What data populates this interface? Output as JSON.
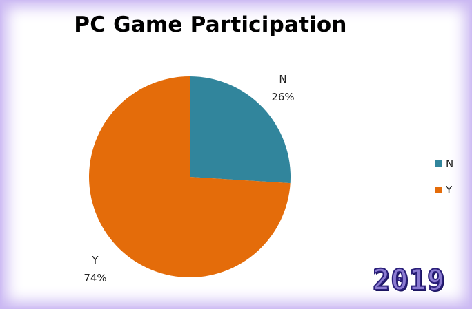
{
  "chart_data": {
    "type": "pie",
    "title": "PC Game Participation",
    "slices": [
      {
        "label": "N",
        "value": 26,
        "display": "26%",
        "color": "#31859c"
      },
      {
        "label": "Y",
        "value": 74,
        "display": "74%",
        "color": "#e46c0a"
      }
    ],
    "legend": {
      "placement": "right",
      "entries": [
        "N",
        "Y"
      ]
    }
  },
  "badge": {
    "year": "2019"
  }
}
